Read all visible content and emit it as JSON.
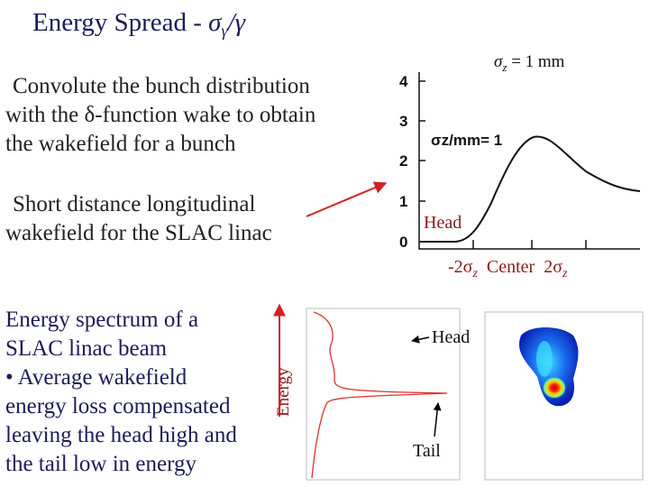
{
  "title": {
    "main": "Energy Spread - ",
    "sigma": "σ",
    "sub": "γ",
    "tail": "/γ"
  },
  "intro": {
    "lines": [
      "Convolute the bunch distribution",
      "with the δ-function wake to obtain",
      "the wakefield for a bunch"
    ]
  },
  "wake_caption": {
    "lines": [
      "Short distance longitudinal",
      "wakefield for the SLAC linac"
    ]
  },
  "wake_plot": {
    "bunch_label": {
      "sigma": "σ",
      "sub": "z",
      "rest": " = 1 mm"
    },
    "yticks": [
      "4",
      "3",
      "2",
      "1",
      "0"
    ],
    "inner_label": "σz/mm= 1",
    "head": "Head",
    "x_labels": [
      {
        "text": "-2σ",
        "sub": "z"
      },
      {
        "text": "Center"
      },
      {
        "text": "2σ",
        "sub": "z"
      }
    ]
  },
  "spectrum_text": {
    "lines": [
      "Energy spectrum of a",
      "SLAC linac beam",
      "• Average wakefield",
      "energy loss compensated",
      "leaving the head high and",
      "the tail low in energy"
    ]
  },
  "spectrum_plot": {
    "axis_label": "Energy",
    "head": "Head",
    "tail": "Tail"
  }
}
